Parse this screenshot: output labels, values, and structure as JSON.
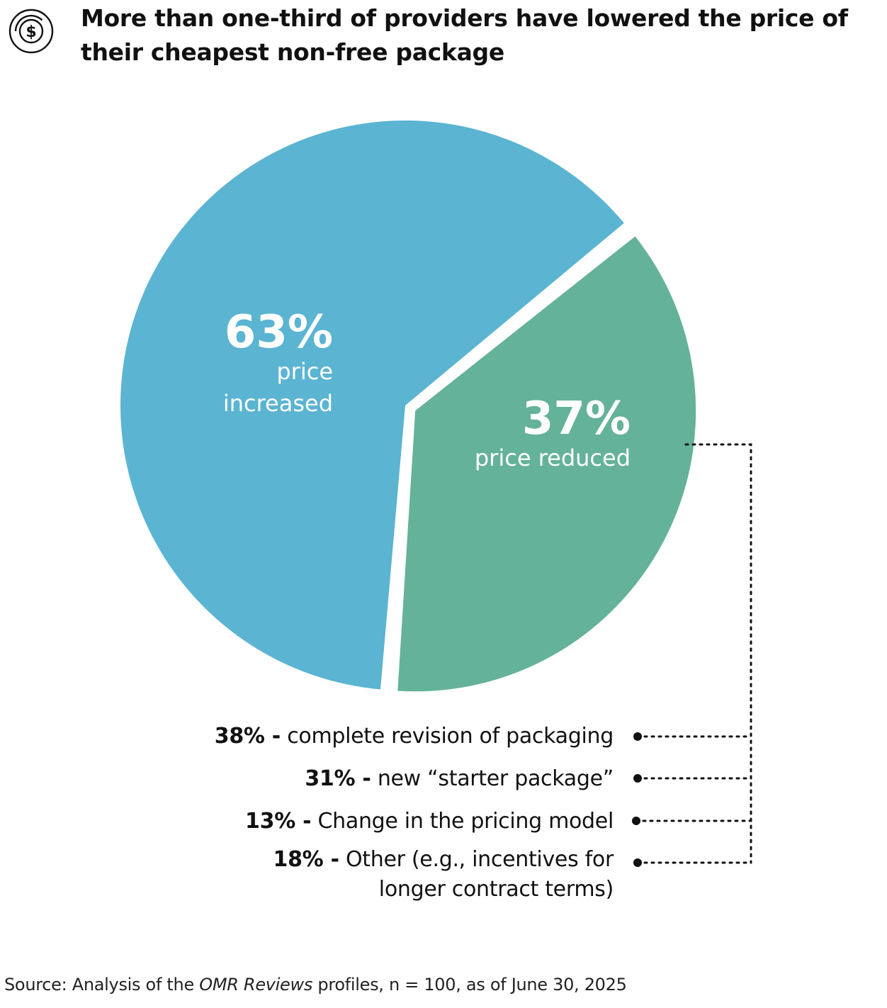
{
  "title": "More than one-third of providers have lowered the price of their cheapest non-free package",
  "icon": "dollar-coin-icon",
  "colors": {
    "increased": "#5ab4d2",
    "reduced": "#64b299",
    "text": "#111111",
    "label": "#ffffff"
  },
  "chart_data": {
    "type": "pie",
    "title": "More than one-third of providers have lowered the price of their cheapest non-free package",
    "slices": [
      {
        "label": "price increased",
        "value": 63,
        "value_label": "63%",
        "label_lines": [
          "price",
          "increased"
        ],
        "color": "#5ab4d2"
      },
      {
        "label": "price reduced",
        "value": 37,
        "value_label": "37%",
        "label_lines": [
          "price reduced"
        ],
        "color": "#64b299",
        "exploded": true
      }
    ],
    "breakdown_of": "price reduced",
    "breakdown": [
      {
        "pct": "38% -",
        "value": 38,
        "text": "complete revision of packaging"
      },
      {
        "pct": "31% -",
        "value": 31,
        "text": "new “starter package”"
      },
      {
        "pct": "13% -",
        "value": 13,
        "text": "Change in the pricing model"
      },
      {
        "pct": "18% -",
        "value": 18,
        "text": "Other (e.g., incentives for",
        "text_line2": "longer contract terms)"
      }
    ]
  },
  "source": {
    "prefix": "Source: Analysis of the ",
    "italic": "OMR Reviews",
    "suffix": " profiles, n = 100, as of June 30, 2025"
  }
}
